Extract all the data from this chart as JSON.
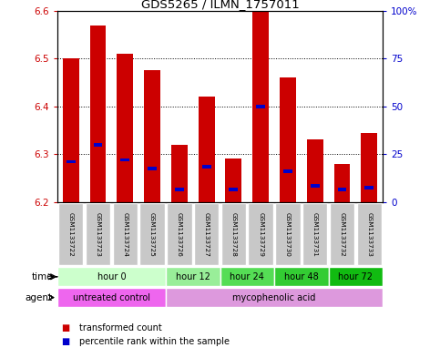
{
  "title": "GDS5265 / ILMN_1757011",
  "samples": [
    "GSM1133722",
    "GSM1133723",
    "GSM1133724",
    "GSM1133725",
    "GSM1133726",
    "GSM1133727",
    "GSM1133728",
    "GSM1133729",
    "GSM1133730",
    "GSM1133731",
    "GSM1133732",
    "GSM1133733"
  ],
  "bar_bottom": 6.2,
  "bar_tops": [
    6.5,
    6.57,
    6.51,
    6.475,
    6.32,
    6.42,
    6.29,
    6.6,
    6.46,
    6.33,
    6.28,
    6.345
  ],
  "percentile_vals": [
    0.21,
    0.3,
    0.22,
    0.175,
    0.065,
    0.185,
    0.065,
    0.5,
    0.16,
    0.085,
    0.065,
    0.075
  ],
  "ylim_left": [
    6.2,
    6.6
  ],
  "ylim_right": [
    0,
    100
  ],
  "yticks_left": [
    6.2,
    6.3,
    6.4,
    6.5,
    6.6
  ],
  "yticks_right": [
    0,
    25,
    50,
    75,
    100
  ],
  "ytick_labels_right": [
    "0",
    "25",
    "50",
    "75",
    "100%"
  ],
  "bar_color": "#cc0000",
  "percentile_color": "#0000cc",
  "bar_width": 0.6,
  "time_groups": [
    {
      "label": "hour 0",
      "start": 0,
      "end": 4,
      "color": "#ccffcc"
    },
    {
      "label": "hour 12",
      "start": 4,
      "end": 6,
      "color": "#99ee99"
    },
    {
      "label": "hour 24",
      "start": 6,
      "end": 8,
      "color": "#55dd55"
    },
    {
      "label": "hour 48",
      "start": 8,
      "end": 10,
      "color": "#33cc33"
    },
    {
      "label": "hour 72",
      "start": 10,
      "end": 12,
      "color": "#11bb11"
    }
  ],
  "agent_groups": [
    {
      "label": "untreated control",
      "start": 0,
      "end": 4,
      "color": "#ee66ee"
    },
    {
      "label": "mycophenolic acid",
      "start": 4,
      "end": 12,
      "color": "#dd99dd"
    }
  ],
  "gray_bg": "#c8c8c8",
  "tick_label_color_left": "#cc0000",
  "tick_label_color_right": "#0000cc",
  "grid_color": "#000000",
  "legend_red_label": "transformed count",
  "legend_blue_label": "percentile rank within the sample"
}
